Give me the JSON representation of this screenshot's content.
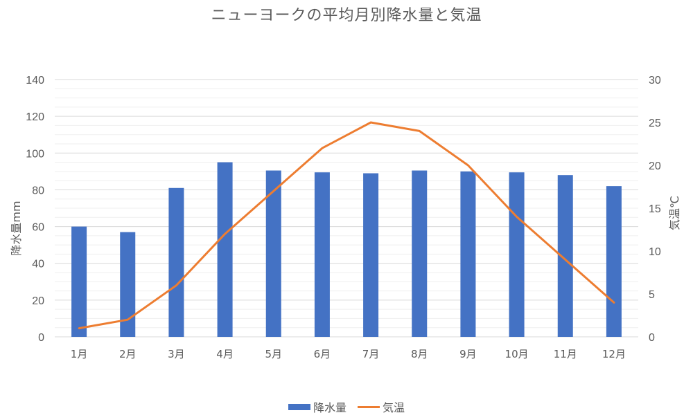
{
  "chart_data": {
    "type": "bar+line",
    "title": "ニューヨークの平均月別降水量と気温",
    "categories": [
      "1月",
      "2月",
      "3月",
      "4月",
      "5月",
      "6月",
      "7月",
      "8月",
      "9月",
      "10月",
      "11月",
      "12月"
    ],
    "series": [
      {
        "name": "降水量",
        "type": "bar",
        "axis": "left",
        "color": "#4472C4",
        "values": [
          60,
          57,
          81,
          95,
          90.5,
          89.5,
          89,
          90.5,
          90,
          89.5,
          88,
          82
        ]
      },
      {
        "name": "気温",
        "type": "line",
        "axis": "right",
        "color": "#ED7D31",
        "values": [
          1,
          2,
          6,
          12,
          17,
          22,
          25,
          24,
          20,
          14,
          9,
          4
        ]
      }
    ],
    "ylabel_left": "降水量mm",
    "ylabel_right": "気温℃",
    "ylim_left": [
      0,
      140
    ],
    "ylim_right": [
      0,
      30
    ],
    "yticks_left": [
      0,
      20,
      40,
      60,
      80,
      100,
      120,
      140
    ],
    "yticks_right": [
      0,
      5,
      10,
      15,
      20,
      25,
      30
    ],
    "grid": true,
    "legend_position": "bottom"
  },
  "title": "ニューヨークの平均月別降水量と気温",
  "axes": {
    "left_label": "降水量mm",
    "right_label": "気温℃"
  },
  "legend": {
    "bar_label": "降水量",
    "line_label": "気温",
    "bar_color": "#4472C4",
    "line_color": "#ED7D31"
  }
}
